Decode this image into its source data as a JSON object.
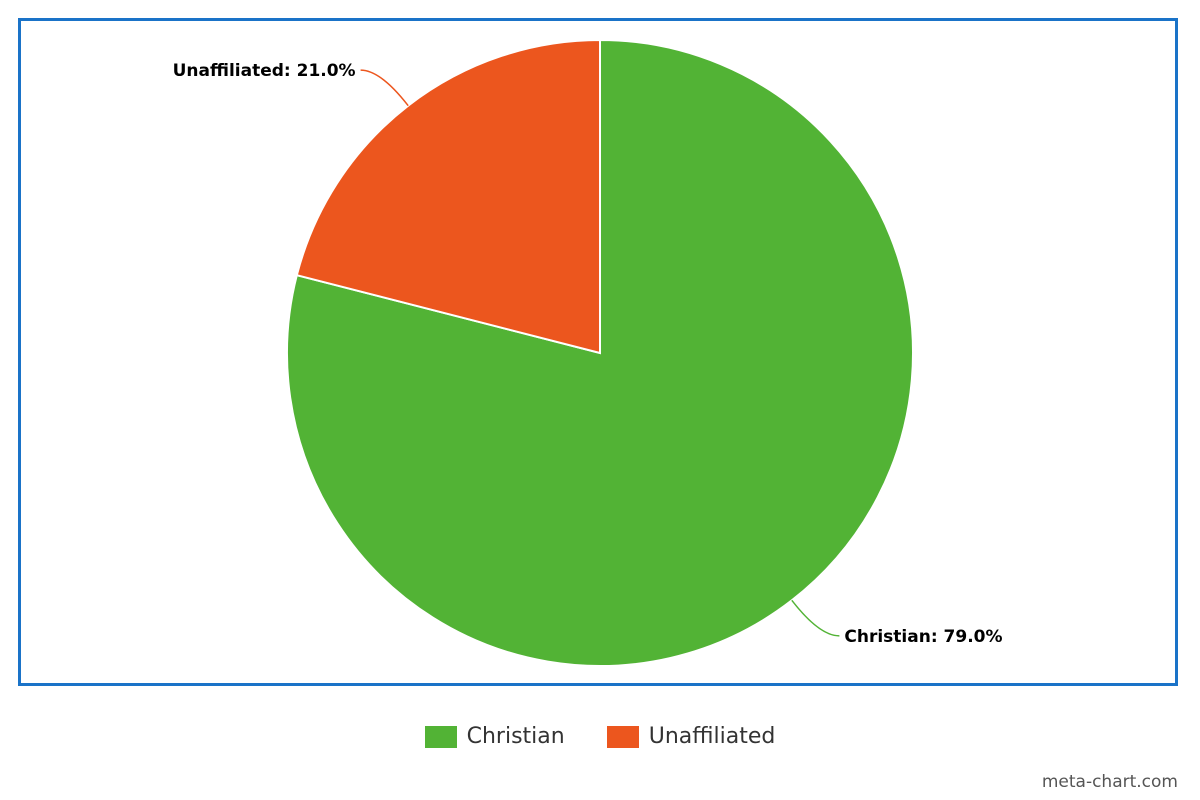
{
  "chart_data": {
    "type": "pie",
    "title": "",
    "categories": [
      "Christian",
      "Unaffiliated"
    ],
    "values": [
      79.0,
      21.0
    ],
    "unit": "%",
    "colors": [
      "#52b335",
      "#ec561e"
    ],
    "data_labels": [
      "Christian: 79.0%",
      "Unaffiliated: 21.0%"
    ],
    "start_angle_deg": 0,
    "direction": "clockwise",
    "legend_position": "bottom-center",
    "border_color": "#1a73c8"
  },
  "legend": {
    "items": [
      {
        "label": "Christian",
        "color": "#52b335"
      },
      {
        "label": "Unaffiliated",
        "color": "#ec561e"
      }
    ]
  },
  "watermark": "meta-chart.com"
}
